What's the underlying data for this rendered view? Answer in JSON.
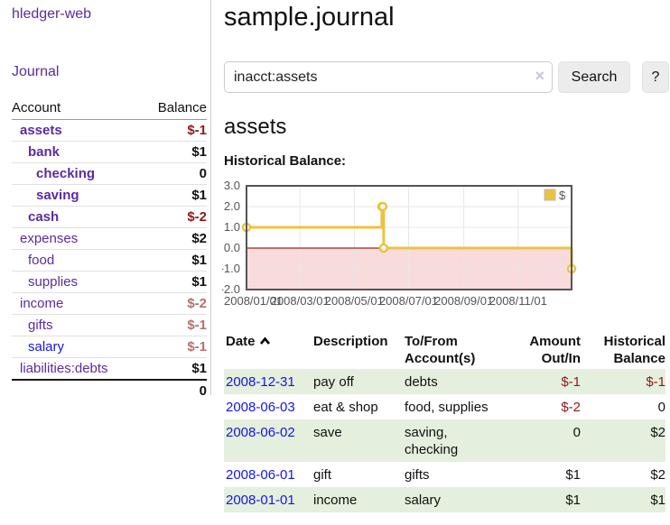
{
  "colors": {
    "link-purple": "#5a2ca0",
    "link-blue": "#1515e8",
    "neg-strong": "#8b1a1a",
    "neg-soft": "#b5706f",
    "row-green": "#e4efdd",
    "series-gold": "#edc240",
    "neg-region-pink": "#f9dbdb",
    "zero-line-red": "#a22424",
    "chart-text": "#545454"
  },
  "app": {
    "brand": "hledger-web"
  },
  "sidebar": {
    "journal_link": "Journal",
    "accounts": {
      "header_account": "Account",
      "header_balance": "Balance",
      "rows": [
        {
          "name": "assets",
          "balance": "$-1"
        },
        {
          "name": "bank",
          "balance": "$1"
        },
        {
          "name": "checking",
          "balance": "0"
        },
        {
          "name": "saving",
          "balance": "$1"
        },
        {
          "name": "cash",
          "balance": "$-2"
        },
        {
          "name": "expenses",
          "balance": "$2"
        },
        {
          "name": "food",
          "balance": "$1"
        },
        {
          "name": "supplies",
          "balance": "$1"
        },
        {
          "name": "income",
          "balance": "$-2"
        },
        {
          "name": "gifts",
          "balance": "$-1"
        },
        {
          "name": "salary",
          "balance": "$-1"
        },
        {
          "name": "liabilities:debts",
          "balance": "$1"
        }
      ],
      "total": "0"
    }
  },
  "header": {
    "title": "sample.journal"
  },
  "search": {
    "query": "inacct:assets",
    "clear_icon": "×",
    "button": "Search",
    "help_button": "?"
  },
  "account_page": {
    "heading": "assets",
    "chart_title": "Historical Balance:"
  },
  "chart_data": {
    "type": "line",
    "style": "step",
    "title": "Historical Balance",
    "xlabel": "",
    "ylabel": "",
    "x_range": [
      "2008-01-01",
      "2008-12-31"
    ],
    "ylim": [
      -2,
      3
    ],
    "grid": true,
    "negative_region_shaded": true,
    "legend": {
      "position": "top-right"
    },
    "series": [
      {
        "name": "$",
        "points": [
          {
            "date": "2008-01-01",
            "value": 1
          },
          {
            "date": "2008-06-01",
            "value": 2
          },
          {
            "date": "2008-06-02",
            "value": 2
          },
          {
            "date": "2008-06-03",
            "value": 0
          },
          {
            "date": "2008-12-31",
            "value": -1
          }
        ]
      }
    ],
    "y_ticks": [
      {
        "value": 3,
        "label": "3.0"
      },
      {
        "value": 2,
        "label": "2.0"
      },
      {
        "value": 1,
        "label": "1.0"
      },
      {
        "value": 0,
        "label": "0.0"
      },
      {
        "value": -1,
        "label": "-1.0"
      },
      {
        "value": -2,
        "label": "-2.0"
      }
    ],
    "x_ticks": [
      {
        "date": "2008-01-01",
        "label": "2008/01/01"
      },
      {
        "date": "2008-03-01",
        "label": "2008/03/01"
      },
      {
        "date": "2008-05-01",
        "label": "2008/05/01"
      },
      {
        "date": "2008-07-01",
        "label": "2008/07/01"
      },
      {
        "date": "2008-09-01",
        "label": "2008/09/01"
      },
      {
        "date": "2008-11-01",
        "label": "2008/11/01"
      }
    ]
  },
  "register": {
    "headers": {
      "date": "Date",
      "description": "Description",
      "account": "To/From Account(s)",
      "amount": "Amount Out/In",
      "balance": "Historical Balance"
    },
    "rows": [
      {
        "date": "2008-12-31",
        "description": "pay off",
        "account": "debts",
        "amount": "$-1",
        "balance": "$-1"
      },
      {
        "date": "2008-06-03",
        "description": "eat & shop",
        "account": "food, supplies",
        "amount": "$-2",
        "balance": "0"
      },
      {
        "date": "2008-06-02",
        "description": "save",
        "account": "saving, checking",
        "amount": "0",
        "balance": "$2"
      },
      {
        "date": "2008-06-01",
        "description": "gift",
        "account": "gifts",
        "amount": "$1",
        "balance": "$2"
      },
      {
        "date": "2008-01-01",
        "description": "income",
        "account": "salary",
        "amount": "$1",
        "balance": "$1"
      }
    ]
  }
}
